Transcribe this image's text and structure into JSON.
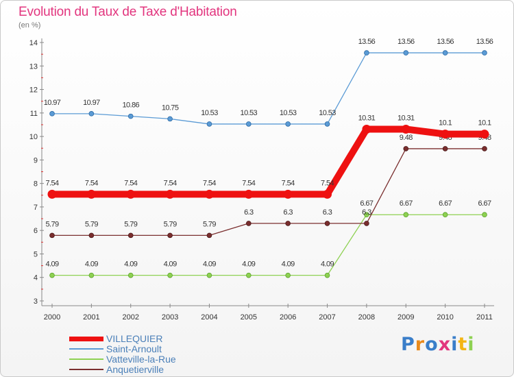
{
  "chart_data": {
    "type": "line",
    "title": "Evolution du Taux de Taxe d'Habitation",
    "subtitle": "(en %)",
    "xlabel": "",
    "ylabel": "",
    "x": [
      "2000",
      "2001",
      "2002",
      "2003",
      "2004",
      "2005",
      "2006",
      "2007",
      "2008",
      "2009",
      "2010",
      "2011"
    ],
    "ylim": [
      3,
      14
    ],
    "yticks": [
      3,
      4,
      5,
      6,
      7,
      8,
      9,
      10,
      11,
      12,
      13,
      14
    ],
    "grid": false,
    "legend_position": "bottom-left",
    "series": [
      {
        "name": "Saint-Arnoult",
        "color": "#5b9bd5",
        "values": [
          10.97,
          10.97,
          10.86,
          10.75,
          10.53,
          10.53,
          10.53,
          10.53,
          13.56,
          13.56,
          13.56,
          13.56
        ],
        "labels": [
          "10.97",
          "10.97",
          "10.86",
          "10.75",
          "10.53",
          "10.53",
          "10.53",
          "10.53",
          "13.56",
          "13.56",
          "13.56",
          "13.56"
        ]
      },
      {
        "name": "Vatteville-la-Rue",
        "color": "#8ed152",
        "values": [
          4.09,
          4.09,
          4.09,
          4.09,
          4.09,
          4.09,
          4.09,
          4.09,
          6.67,
          6.67,
          6.67,
          6.67
        ],
        "labels": [
          "4.09",
          "4.09",
          "4.09",
          "4.09",
          "4.09",
          "4.09",
          "4.09",
          "4.09",
          "6.67",
          "6.67",
          "6.67",
          "6.67"
        ]
      },
      {
        "name": "Anquetierville",
        "color": "#7a2e2e",
        "values": [
          5.79,
          5.79,
          5.79,
          5.79,
          5.79,
          6.3,
          6.3,
          6.3,
          6.3,
          9.48,
          9.48,
          9.48
        ],
        "labels": [
          "5.79",
          "5.79",
          "5.79",
          "5.79",
          "5.79",
          "6.3",
          "6.3",
          "6.3",
          "6.3",
          "9.48",
          "9.48",
          "9.48"
        ]
      },
      {
        "name": "VILLEQUIER",
        "color": "#ee1111",
        "values": [
          7.54,
          7.54,
          7.54,
          7.54,
          7.54,
          7.54,
          7.54,
          7.54,
          10.31,
          10.31,
          10.1,
          10.1
        ],
        "labels": [
          "7.54",
          "7.54",
          "7.54",
          "7.54",
          "7.54",
          "7.54",
          "7.54",
          "7.54",
          "10.31",
          "10.31",
          "10.1",
          "10.1"
        ]
      }
    ]
  },
  "legend": {
    "items": [
      {
        "label": "VILLEQUIER",
        "color": "#ee1111",
        "thickness": "thick"
      },
      {
        "label": "Saint-Arnoult",
        "color": "#5b9bd5",
        "thickness": "thin"
      },
      {
        "label": "Vatteville-la-Rue",
        "color": "#8ed152",
        "thickness": "thin"
      },
      {
        "label": "Anquetierville",
        "color": "#7a2e2e",
        "thickness": "thin"
      }
    ]
  },
  "brand": {
    "letters": [
      "P",
      "r",
      "o",
      "x",
      "i",
      "t",
      "i"
    ],
    "colors": [
      "#3a7ec9",
      "#e98a1b",
      "#3a7ec9",
      "#e2357e",
      "#3a7ec9",
      "#f3b513",
      "#8ed152"
    ]
  }
}
